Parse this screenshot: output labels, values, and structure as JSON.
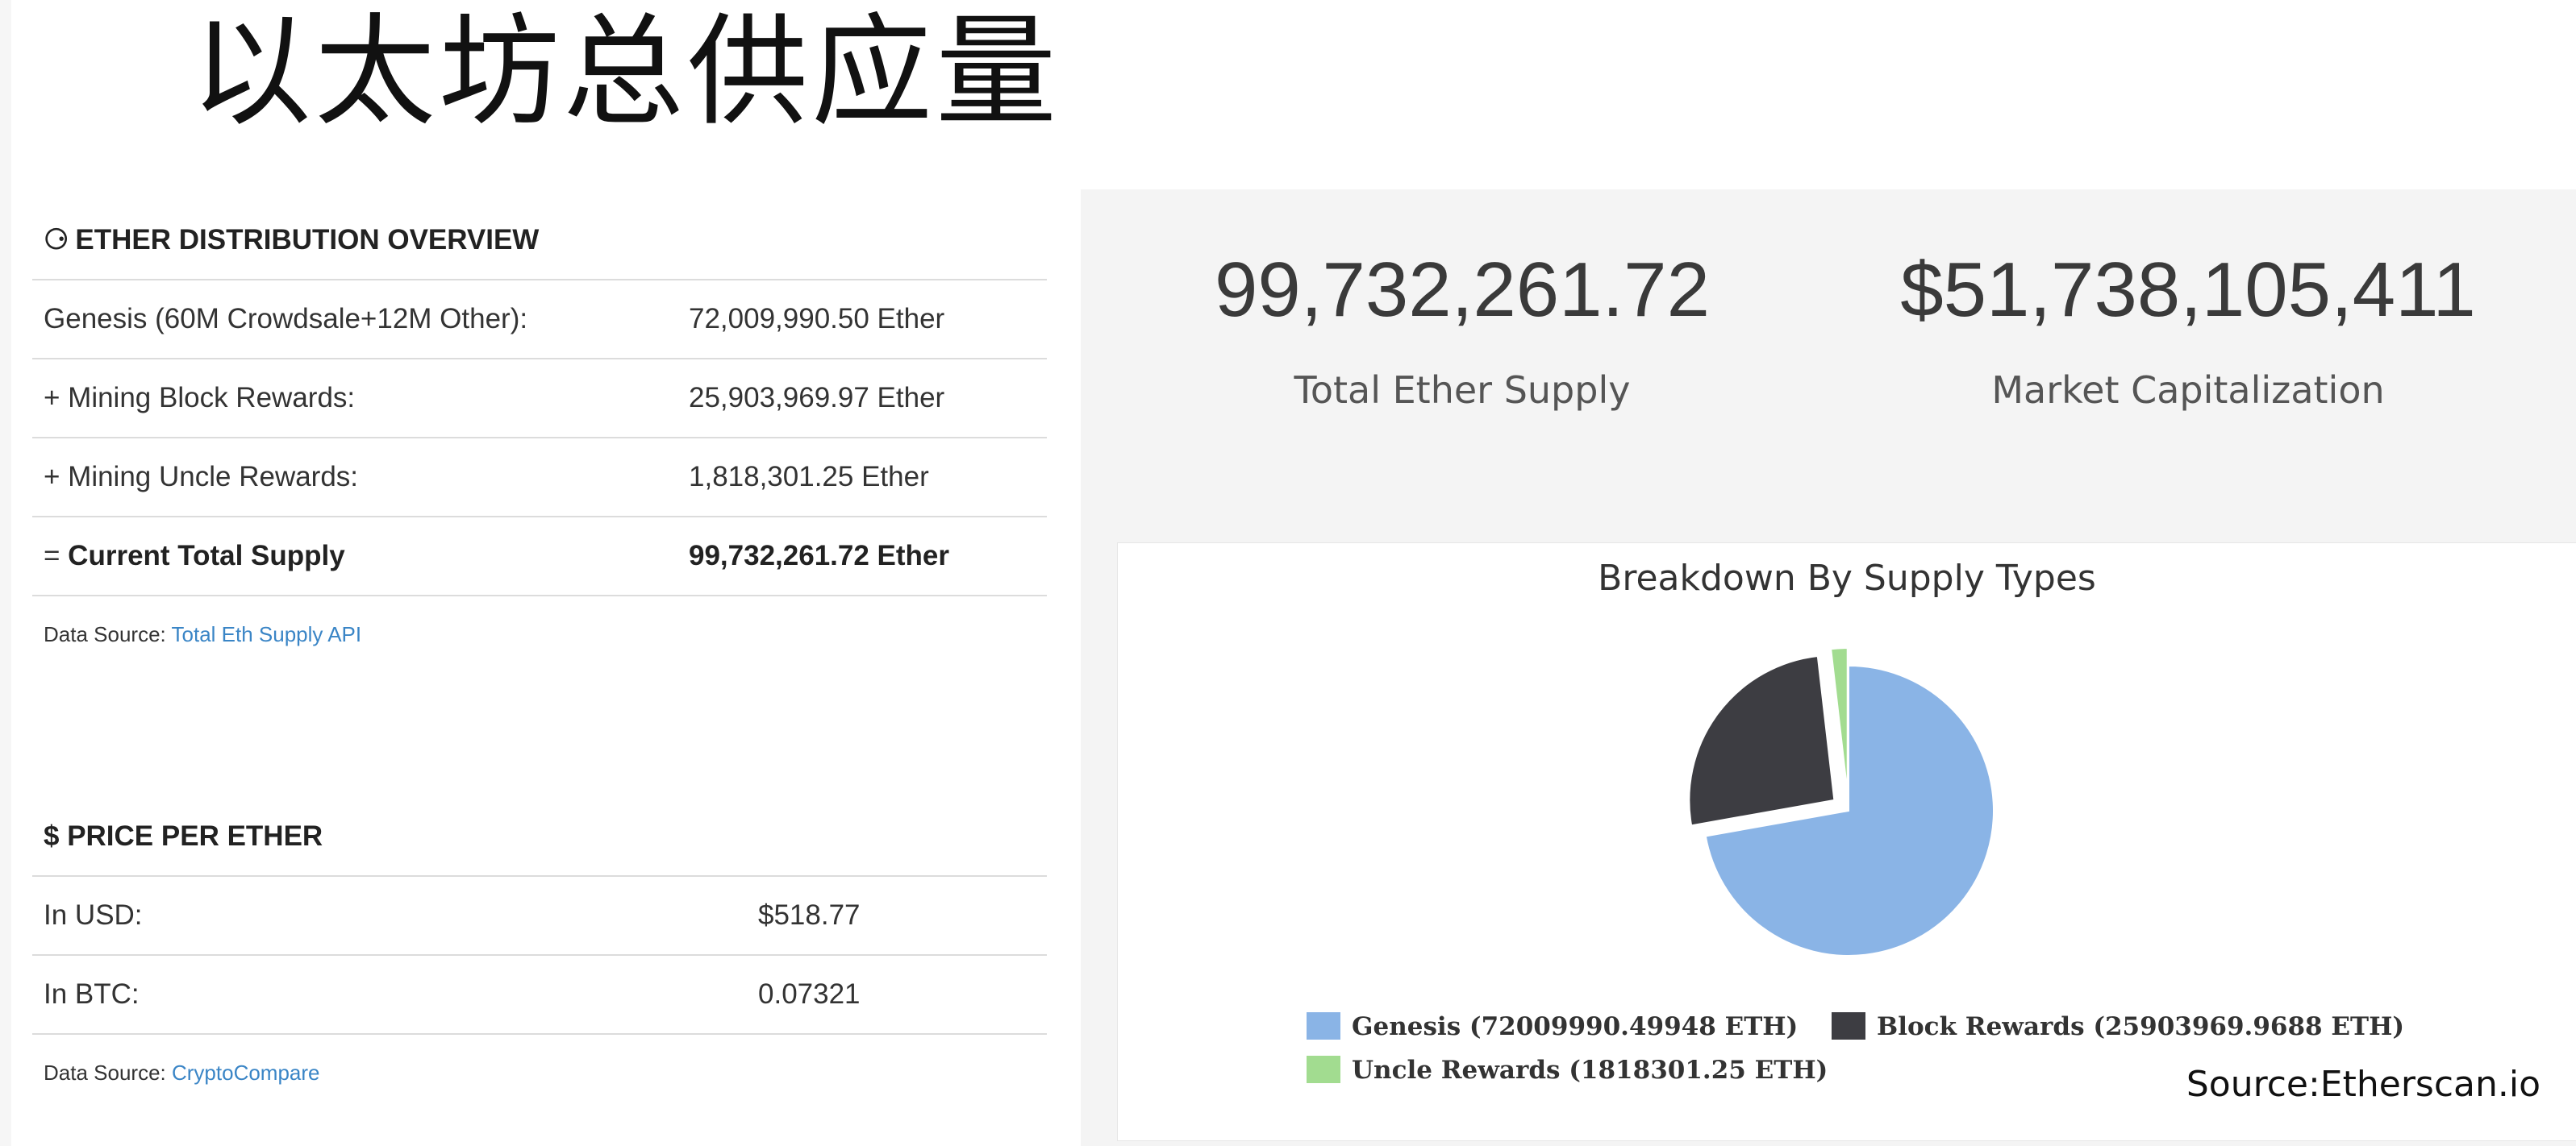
{
  "slide": {
    "title": "以太坊总供应量"
  },
  "distribution": {
    "heading_icon": "sitemap-icon",
    "heading_glyph": "⚆",
    "heading": "ETHER DISTRIBUTION OVERVIEW",
    "rows": [
      {
        "label": "Genesis (60M Crowdsale+12M Other):",
        "value": "72,009,990.50 Ether"
      },
      {
        "label": "+ Mining Block Rewards:",
        "value": "25,903,969.97 Ether"
      },
      {
        "label": "+ Mining Uncle Rewards:",
        "value": "1,818,301.25 Ether"
      }
    ],
    "total_prefix": "= ",
    "total_label": "Current Total Supply",
    "total_value": "99,732,261.72 Ether",
    "source_label": "Data Source: ",
    "source_link": "Total Eth Supply API"
  },
  "price": {
    "heading": "$ PRICE PER ETHER",
    "rows": [
      {
        "label": "In USD:",
        "value": "$518.77"
      },
      {
        "label": "In BTC:",
        "value": "0.07321"
      }
    ],
    "source_label": "Data Source: ",
    "source_link": "CryptoCompare"
  },
  "stats": {
    "supply_value": "99,732,261.72",
    "supply_label": "Total Ether Supply",
    "market_cap_value": "$51,738,105,411",
    "market_cap_label": "Market Capitalization"
  },
  "chart_data": {
    "type": "pie",
    "title": "Breakdown By Supply Types",
    "series": [
      {
        "name": "Genesis",
        "legend": "Genesis (72009990.49948 ETH)",
        "value": 72009990.49948,
        "color": "#8ab4e6",
        "exploded": false
      },
      {
        "name": "Block Rewards",
        "legend": "Block Rewards (25903969.9688 ETH)",
        "value": 25903969.9688,
        "color": "#3d3d42",
        "exploded": true
      },
      {
        "name": "Uncle Rewards",
        "legend": "Uncle Rewards (1818301.25 ETH)",
        "value": 1818301.25,
        "color": "#a2dc90",
        "exploded": true
      }
    ],
    "legend_position": "bottom"
  },
  "credit": "Source:Etherscan.io"
}
